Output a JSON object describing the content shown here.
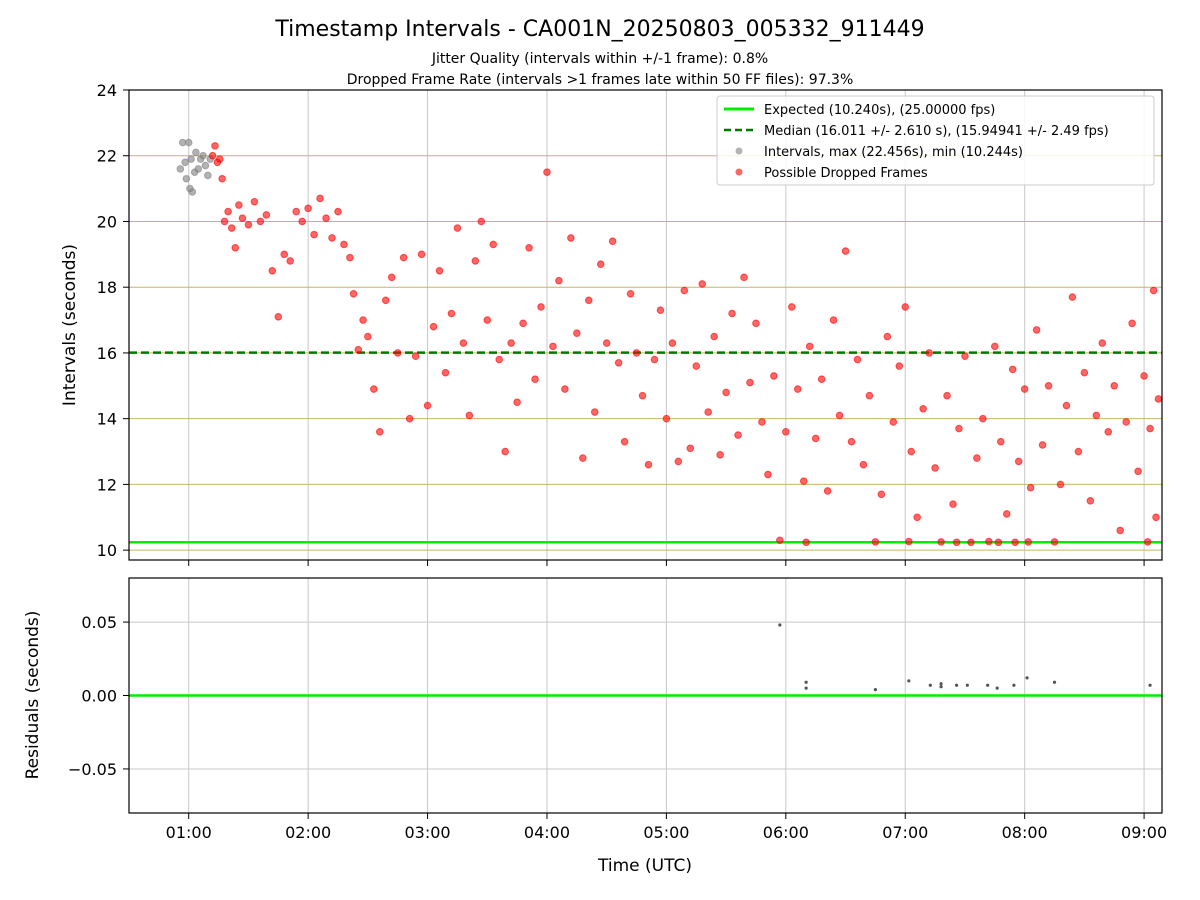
{
  "figure": {
    "title": "Timestamp Intervals - CA001N_20250803_005332_911449",
    "subtitle_line1": "Jitter Quality (intervals within +/-1 frame): 0.8%",
    "subtitle_line2": "Dropped Frame Rate (intervals >1 frames late within 50 FF files): 97.3%"
  },
  "colors": {
    "expected": "#00ee00",
    "median": "#007700",
    "intervals": "#808080",
    "dropped": "#ff0000",
    "hgrid": "#c8b46a",
    "vgrid": "#c8c8c8"
  },
  "chart_data": [
    {
      "type": "scatter",
      "ylabel": "Intervals (seconds)",
      "xlim_hours": [
        0.5,
        9.15
      ],
      "ylim": [
        9.7,
        24
      ],
      "y_ticks": [
        "10",
        "12",
        "14",
        "16",
        "18",
        "20",
        "22",
        "24"
      ],
      "grid": true,
      "legend_position": "top-right",
      "legend": [
        "Expected (10.240s), (25.00000 fps)",
        "Median (16.011 +/- 2.610 s), (15.94941 +/- 2.49 fps)",
        "Intervals, max (22.456s), min (10.244s)",
        "Possible Dropped Frames"
      ],
      "expected_line": 10.24,
      "median_line": 16.011,
      "series": [
        {
          "name": "Intervals, max (22.456s), min (10.244s)",
          "points": [
            [
              0.93,
              21.6
            ],
            [
              0.95,
              22.4
            ],
            [
              0.97,
              21.8
            ],
            [
              0.98,
              21.3
            ],
            [
              1.0,
              22.4
            ],
            [
              1.01,
              21.0
            ],
            [
              1.02,
              21.9
            ],
            [
              1.03,
              20.9
            ],
            [
              1.05,
              21.5
            ],
            [
              1.06,
              22.1
            ],
            [
              1.08,
              21.6
            ],
            [
              1.1,
              21.9
            ],
            [
              1.12,
              22.0
            ],
            [
              1.14,
              21.7
            ],
            [
              1.16,
              21.4
            ],
            [
              1.18,
              21.9
            ]
          ]
        },
        {
          "name": "Possible Dropped Frames",
          "points": [
            [
              1.2,
              22.0
            ],
            [
              1.22,
              22.3
            ],
            [
              1.24,
              21.8
            ],
            [
              1.26,
              21.9
            ],
            [
              1.28,
              21.3
            ],
            [
              1.3,
              20.0
            ],
            [
              1.33,
              20.3
            ],
            [
              1.36,
              19.8
            ],
            [
              1.39,
              19.2
            ],
            [
              1.42,
              20.5
            ],
            [
              1.45,
              20.1
            ],
            [
              1.5,
              19.9
            ],
            [
              1.55,
              20.6
            ],
            [
              1.6,
              20.0
            ],
            [
              1.65,
              20.2
            ],
            [
              1.7,
              18.5
            ],
            [
              1.75,
              17.1
            ],
            [
              1.8,
              19.0
            ],
            [
              1.85,
              18.8
            ],
            [
              1.9,
              20.3
            ],
            [
              1.95,
              20.0
            ],
            [
              2.0,
              20.4
            ],
            [
              2.05,
              19.6
            ],
            [
              2.1,
              20.7
            ],
            [
              2.15,
              20.1
            ],
            [
              2.2,
              19.5
            ],
            [
              2.25,
              20.3
            ],
            [
              2.3,
              19.3
            ],
            [
              2.35,
              18.9
            ],
            [
              2.38,
              17.8
            ],
            [
              2.42,
              16.1
            ],
            [
              2.46,
              17.0
            ],
            [
              2.5,
              16.5
            ],
            [
              2.55,
              14.9
            ],
            [
              2.6,
              13.6
            ],
            [
              2.65,
              17.6
            ],
            [
              2.7,
              18.3
            ],
            [
              2.75,
              16.0
            ],
            [
              2.8,
              18.9
            ],
            [
              2.85,
              14.0
            ],
            [
              2.9,
              15.9
            ],
            [
              2.95,
              19.0
            ],
            [
              3.0,
              14.4
            ],
            [
              3.05,
              16.8
            ],
            [
              3.1,
              18.5
            ],
            [
              3.15,
              15.4
            ],
            [
              3.2,
              17.2
            ],
            [
              3.25,
              19.8
            ],
            [
              3.3,
              16.3
            ],
            [
              3.35,
              14.1
            ],
            [
              3.4,
              18.8
            ],
            [
              3.45,
              20.0
            ],
            [
              3.5,
              17.0
            ],
            [
              3.55,
              19.3
            ],
            [
              3.6,
              15.8
            ],
            [
              3.65,
              13.0
            ],
            [
              3.7,
              16.3
            ],
            [
              3.75,
              14.5
            ],
            [
              3.8,
              16.9
            ],
            [
              3.85,
              19.2
            ],
            [
              3.9,
              15.2
            ],
            [
              3.95,
              17.4
            ],
            [
              4.0,
              21.5
            ],
            [
              4.05,
              16.2
            ],
            [
              4.1,
              18.2
            ],
            [
              4.15,
              14.9
            ],
            [
              4.2,
              19.5
            ],
            [
              4.25,
              16.6
            ],
            [
              4.3,
              12.8
            ],
            [
              4.35,
              17.6
            ],
            [
              4.4,
              14.2
            ],
            [
              4.45,
              18.7
            ],
            [
              4.5,
              16.3
            ],
            [
              4.55,
              19.4
            ],
            [
              4.6,
              15.7
            ],
            [
              4.65,
              13.3
            ],
            [
              4.7,
              17.8
            ],
            [
              4.75,
              16.0
            ],
            [
              4.8,
              14.7
            ],
            [
              4.85,
              12.6
            ],
            [
              4.9,
              15.8
            ],
            [
              4.95,
              17.3
            ],
            [
              5.0,
              14.0
            ],
            [
              5.05,
              16.3
            ],
            [
              5.1,
              12.7
            ],
            [
              5.15,
              17.9
            ],
            [
              5.2,
              13.1
            ],
            [
              5.25,
              15.6
            ],
            [
              5.3,
              18.1
            ],
            [
              5.35,
              14.2
            ],
            [
              5.4,
              16.5
            ],
            [
              5.45,
              12.9
            ],
            [
              5.5,
              14.8
            ],
            [
              5.55,
              17.2
            ],
            [
              5.6,
              13.5
            ],
            [
              5.65,
              18.3
            ],
            [
              5.7,
              15.1
            ],
            [
              5.75,
              16.9
            ],
            [
              5.8,
              13.9
            ],
            [
              5.85,
              12.3
            ],
            [
              5.9,
              15.3
            ],
            [
              5.95,
              10.3
            ],
            [
              6.0,
              13.6
            ],
            [
              6.05,
              17.4
            ],
            [
              6.1,
              14.9
            ],
            [
              6.15,
              12.1
            ],
            [
              6.17,
              10.24
            ],
            [
              6.2,
              16.2
            ],
            [
              6.25,
              13.4
            ],
            [
              6.3,
              15.2
            ],
            [
              6.35,
              11.8
            ],
            [
              6.4,
              17.0
            ],
            [
              6.45,
              14.1
            ],
            [
              6.5,
              19.1
            ],
            [
              6.55,
              13.3
            ],
            [
              6.6,
              15.8
            ],
            [
              6.65,
              12.6
            ],
            [
              6.7,
              14.7
            ],
            [
              6.75,
              10.25
            ],
            [
              6.8,
              11.7
            ],
            [
              6.85,
              16.5
            ],
            [
              6.9,
              13.9
            ],
            [
              6.95,
              15.6
            ],
            [
              7.0,
              17.4
            ],
            [
              7.03,
              10.26
            ],
            [
              7.05,
              13.0
            ],
            [
              7.1,
              11.0
            ],
            [
              7.15,
              14.3
            ],
            [
              7.2,
              16.0
            ],
            [
              7.25,
              12.5
            ],
            [
              7.3,
              10.25
            ],
            [
              7.35,
              14.7
            ],
            [
              7.4,
              11.4
            ],
            [
              7.43,
              10.24
            ],
            [
              7.45,
              13.7
            ],
            [
              7.5,
              15.9
            ],
            [
              7.55,
              10.24
            ],
            [
              7.6,
              12.8
            ],
            [
              7.65,
              14.0
            ],
            [
              7.7,
              10.26
            ],
            [
              7.75,
              16.2
            ],
            [
              7.78,
              10.24
            ],
            [
              7.8,
              13.3
            ],
            [
              7.85,
              11.1
            ],
            [
              7.9,
              15.5
            ],
            [
              7.92,
              10.24
            ],
            [
              7.95,
              12.7
            ],
            [
              8.0,
              14.9
            ],
            [
              8.03,
              10.25
            ],
            [
              8.05,
              11.9
            ],
            [
              8.1,
              16.7
            ],
            [
              8.15,
              13.2
            ],
            [
              8.2,
              15.0
            ],
            [
              8.25,
              10.25
            ],
            [
              8.3,
              12.0
            ],
            [
              8.35,
              14.4
            ],
            [
              8.4,
              17.7
            ],
            [
              8.45,
              13.0
            ],
            [
              8.5,
              15.4
            ],
            [
              8.55,
              11.5
            ],
            [
              8.6,
              14.1
            ],
            [
              8.65,
              16.3
            ],
            [
              8.7,
              13.6
            ],
            [
              8.75,
              15.0
            ],
            [
              8.8,
              10.6
            ],
            [
              8.85,
              13.9
            ],
            [
              8.9,
              16.9
            ],
            [
              8.95,
              12.4
            ],
            [
              9.0,
              15.3
            ],
            [
              9.03,
              10.25
            ],
            [
              9.05,
              13.7
            ],
            [
              9.08,
              17.9
            ],
            [
              9.1,
              11.0
            ],
            [
              9.12,
              14.6
            ]
          ]
        }
      ]
    },
    {
      "type": "scatter",
      "xlabel": "Time (UTC)",
      "ylabel": "Residuals (seconds)",
      "xlim_hours": [
        0.5,
        9.15
      ],
      "ylim": [
        -0.08,
        0.08
      ],
      "y_ticks": [
        "−0.05",
        "0.00",
        "0.05"
      ],
      "x_tick_labels": [
        "01:00",
        "02:00",
        "03:00",
        "04:00",
        "05:00",
        "06:00",
        "07:00",
        "08:00",
        "09:00"
      ],
      "grid": true,
      "zero_line": 0.0,
      "series": [
        {
          "name": "Residuals",
          "points": [
            [
              5.95,
              0.048
            ],
            [
              6.17,
              0.009
            ],
            [
              6.17,
              0.005
            ],
            [
              6.75,
              0.004
            ],
            [
              7.03,
              0.01
            ],
            [
              7.21,
              0.007
            ],
            [
              7.3,
              0.008
            ],
            [
              7.3,
              0.006
            ],
            [
              7.43,
              0.007
            ],
            [
              7.52,
              0.007
            ],
            [
              7.69,
              0.007
            ],
            [
              7.77,
              0.005
            ],
            [
              7.91,
              0.007
            ],
            [
              8.02,
              0.012
            ],
            [
              8.25,
              0.009
            ],
            [
              9.05,
              0.007
            ]
          ]
        }
      ]
    }
  ]
}
